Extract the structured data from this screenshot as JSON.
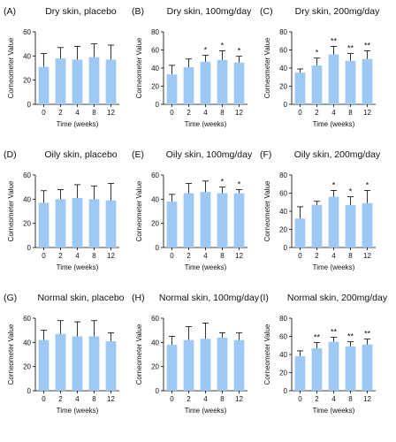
{
  "colors": {
    "bar": "#9ec9f5",
    "axis": "#000000",
    "text": "#111111"
  },
  "chart_data": [
    {
      "type": "bar",
      "panel": "(A)",
      "title": "Dry skin, placebo",
      "categories": [
        "0",
        "2",
        "4",
        "8",
        "12"
      ],
      "values": [
        31,
        38,
        37,
        39,
        37
      ],
      "errors": [
        11,
        9,
        11,
        11,
        12
      ],
      "significance": [
        "",
        "",
        "",
        "",
        ""
      ],
      "ylim": [
        0,
        60
      ],
      "yticks": [
        "0",
        "20",
        "40",
        "60"
      ],
      "xlabel": "Time (weeks)",
      "ylabel": "Corneometer Value"
    },
    {
      "type": "bar",
      "panel": "(B)",
      "title": "Dry skin, 100mg/day",
      "categories": [
        "0",
        "2",
        "4",
        "8",
        "12"
      ],
      "values": [
        33,
        41,
        47,
        49,
        46
      ],
      "errors": [
        10,
        9,
        7,
        10,
        7
      ],
      "significance": [
        "",
        "",
        "*",
        "*",
        "*"
      ],
      "ylim": [
        0,
        80
      ],
      "yticks": [
        "0",
        "20",
        "40",
        "60",
        "80"
      ],
      "xlabel": "Time (weeks)",
      "ylabel": "Corneometer Value"
    },
    {
      "type": "bar",
      "panel": "(C)",
      "title": "Dry skin, 200mg/day",
      "categories": [
        "0",
        "2",
        "4",
        "8",
        "12"
      ],
      "values": [
        35,
        43,
        55,
        48,
        50
      ],
      "errors": [
        4,
        8,
        9,
        8,
        9
      ],
      "significance": [
        "",
        "*",
        "**",
        "**",
        "**"
      ],
      "ylim": [
        0,
        80
      ],
      "yticks": [
        "0",
        "20",
        "40",
        "60",
        "80"
      ],
      "xlabel": "Time (weeks)",
      "ylabel": "Corneometer Value"
    },
    {
      "type": "bar",
      "panel": "(D)",
      "title": "Oily skin, placebo",
      "categories": [
        "0",
        "2",
        "4",
        "8",
        "12"
      ],
      "values": [
        37,
        40,
        41,
        40,
        39
      ],
      "errors": [
        10,
        8,
        11,
        11,
        14
      ],
      "significance": [
        "",
        "",
        "",
        "",
        ""
      ],
      "ylim": [
        0,
        60
      ],
      "yticks": [
        "0",
        "20",
        "40",
        "60"
      ],
      "xlabel": "Time (weeks)",
      "ylabel": "Corneometer Value"
    },
    {
      "type": "bar",
      "panel": "(E)",
      "title": "Oily skin, 100mg/day",
      "categories": [
        "0",
        "2",
        "4",
        "8",
        "12"
      ],
      "values": [
        38,
        45,
        46,
        45,
        45
      ],
      "errors": [
        6,
        8,
        9,
        5,
        3
      ],
      "significance": [
        "",
        "",
        "",
        "*",
        "*"
      ],
      "ylim": [
        0,
        60
      ],
      "yticks": [
        "0",
        "20",
        "40",
        "60"
      ],
      "xlabel": "Time (weeks)",
      "ylabel": "Corneometer Value"
    },
    {
      "type": "bar",
      "panel": "(F)",
      "title": "Oily skin, 200mg/day",
      "categories": [
        "0",
        "2",
        "4",
        "8",
        "12"
      ],
      "values": [
        32,
        47,
        56,
        47,
        49
      ],
      "errors": [
        13,
        4,
        7,
        9,
        14
      ],
      "significance": [
        "",
        "",
        "*",
        "*",
        "*"
      ],
      "ylim": [
        0,
        80
      ],
      "yticks": [
        "0",
        "20",
        "40",
        "60",
        "80"
      ],
      "xlabel": "Time (weeks)",
      "ylabel": "Corneometer Value"
    },
    {
      "type": "bar",
      "panel": "(G)",
      "title": "Normal  skin, placebo",
      "categories": [
        "0",
        "2",
        "4",
        "8",
        "12"
      ],
      "values": [
        42,
        47,
        45,
        45,
        41
      ],
      "errors": [
        8,
        11,
        12,
        13,
        7
      ],
      "significance": [
        "",
        "",
        "",
        "",
        ""
      ],
      "ylim": [
        0,
        60
      ],
      "yticks": [
        "0",
        "20",
        "40",
        "60"
      ],
      "xlabel": "Time (weeks)",
      "ylabel": "Corneometer Value"
    },
    {
      "type": "bar",
      "panel": "(H)",
      "title": "Normal skin, 100mg/day",
      "categories": [
        "0",
        "2",
        "4",
        "8",
        "12"
      ],
      "values": [
        38,
        42,
        43,
        44,
        42
      ],
      "errors": [
        7,
        11,
        13,
        4,
        6
      ],
      "significance": [
        "",
        "",
        "",
        "",
        ""
      ],
      "ylim": [
        0,
        60
      ],
      "yticks": [
        "0",
        "20",
        "40",
        "60"
      ],
      "xlabel": "Time (weeks)",
      "ylabel": "Corneometer Value"
    },
    {
      "type": "bar",
      "panel": "(I)",
      "title": "Normal skin, 200mg/day",
      "categories": [
        "0",
        "2",
        "4",
        "8",
        "12"
      ],
      "values": [
        38,
        47,
        54,
        49,
        51
      ],
      "errors": [
        6,
        6,
        5,
        5,
        6
      ],
      "significance": [
        "",
        "**",
        "**",
        "**",
        "**"
      ],
      "ylim": [
        0,
        80
      ],
      "yticks": [
        "0",
        "20",
        "40",
        "60",
        "80"
      ],
      "xlabel": "Time (weeks)",
      "ylabel": "Corneometer Value"
    }
  ]
}
